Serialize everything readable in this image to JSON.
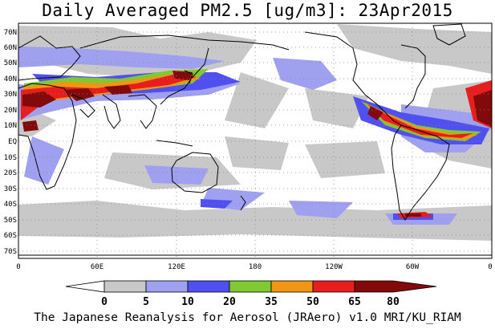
{
  "title": "Daily Averaged PM2.5 [ug/m3]: 23Apr2015",
  "footer": "The Japanese Reanalysis for Aerosol (JRAero) v1.0 MRI/KU_RIAM",
  "lat_labels": [
    "70N",
    "60N",
    "50N",
    "40N",
    "30N",
    "20N",
    "10N",
    "EQ",
    "10S",
    "20S",
    "30S",
    "40S",
    "50S",
    "60S",
    "70S"
  ],
  "lon_labels": [
    "0",
    "60E",
    "120E",
    "180",
    "120W",
    "60W",
    "0"
  ],
  "colorbar": {
    "ticks": [
      "0",
      "5",
      "10",
      "20",
      "35",
      "50",
      "65",
      "80"
    ],
    "colors": [
      "#ffffff",
      "#c8c8c8",
      "#a0a0f0",
      "#5050f0",
      "#82c832",
      "#f09614",
      "#e61e1e",
      "#820a0a"
    ]
  },
  "legend_classes": [
    {
      "range": "0-5",
      "color": "#ffffff"
    },
    {
      "range": "5-10",
      "color": "#c8c8c8"
    },
    {
      "range": "10-20",
      "color": "#a0a0f0"
    },
    {
      "range": "20-35",
      "color": "#5050f0"
    },
    {
      "range": "35-50",
      "color": "#82c832"
    },
    {
      "range": "50-65",
      "color": "#f09614"
    },
    {
      "range": "65-80",
      "color": "#e61e1e"
    },
    {
      "range": ">80",
      "color": "#820a0a"
    }
  ]
}
